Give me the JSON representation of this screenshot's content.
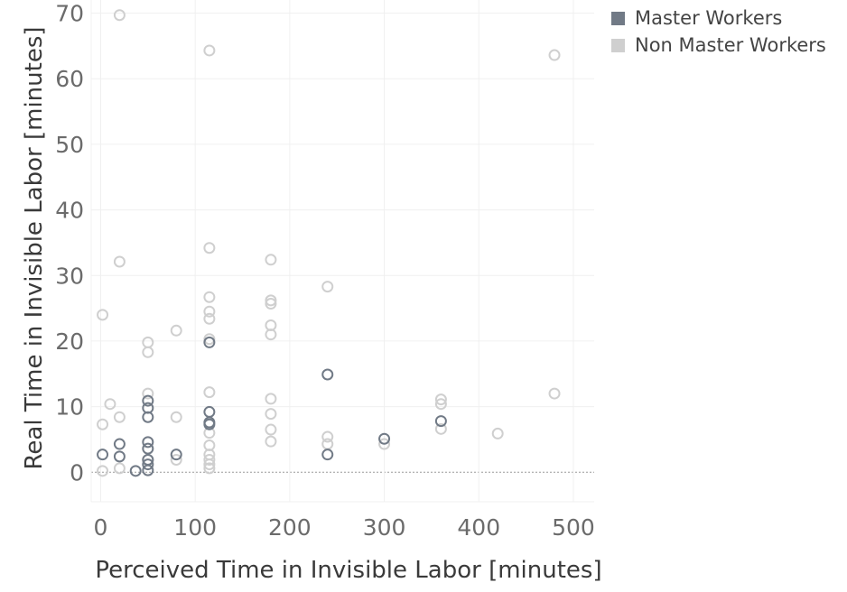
{
  "chart_data": {
    "type": "scatter",
    "xlabel": "Perceived Time in Invisible Labor [minutes]",
    "ylabel": "Real Time in Invisible Labor [minutes]",
    "xlim": [
      -10,
      522
    ],
    "ylim": [
      -4.5,
      72
    ],
    "x_ticks": [
      0,
      100,
      200,
      300,
      400,
      500
    ],
    "y_ticks": [
      0,
      10,
      20,
      30,
      40,
      50,
      60,
      70
    ],
    "grid": true,
    "legend_position": "top-right",
    "series": [
      {
        "name": "Master Workers",
        "color": "#717a86",
        "points": [
          [
            2,
            2.7
          ],
          [
            20,
            2.4
          ],
          [
            20,
            4.3
          ],
          [
            37,
            0.2
          ],
          [
            50,
            0.3
          ],
          [
            50,
            1.2
          ],
          [
            50,
            1.9
          ],
          [
            50,
            3.6
          ],
          [
            50,
            4.6
          ],
          [
            50,
            8.4
          ],
          [
            50,
            9.8
          ],
          [
            50,
            10.9
          ],
          [
            80,
            2.7
          ],
          [
            115,
            7.3
          ],
          [
            115,
            7.6
          ],
          [
            115,
            9.2
          ],
          [
            115,
            19.8
          ],
          [
            240,
            2.7
          ],
          [
            240,
            14.9
          ],
          [
            300,
            5.1
          ],
          [
            360,
            7.8
          ]
        ]
      },
      {
        "name": "Non Master Workers",
        "color": "#cfcfcf",
        "points": [
          [
            2,
            0.2
          ],
          [
            2,
            7.3
          ],
          [
            2,
            24.0
          ],
          [
            10,
            10.4
          ],
          [
            20,
            0.6
          ],
          [
            20,
            8.4
          ],
          [
            20,
            32.1
          ],
          [
            20,
            69.7
          ],
          [
            50,
            1.9
          ],
          [
            50,
            12.0
          ],
          [
            50,
            18.3
          ],
          [
            50,
            19.8
          ],
          [
            80,
            1.9
          ],
          [
            80,
            8.4
          ],
          [
            80,
            21.6
          ],
          [
            115,
            0.6
          ],
          [
            115,
            1.2
          ],
          [
            115,
            1.9
          ],
          [
            115,
            2.7
          ],
          [
            115,
            4.1
          ],
          [
            115,
            6.0
          ],
          [
            115,
            12.2
          ],
          [
            115,
            20.3
          ],
          [
            115,
            23.4
          ],
          [
            115,
            24.5
          ],
          [
            115,
            26.7
          ],
          [
            115,
            34.2
          ],
          [
            115,
            64.3
          ],
          [
            180,
            4.7
          ],
          [
            180,
            6.5
          ],
          [
            180,
            8.9
          ],
          [
            180,
            11.2
          ],
          [
            180,
            21.0
          ],
          [
            180,
            22.4
          ],
          [
            180,
            25.7
          ],
          [
            180,
            26.2
          ],
          [
            180,
            32.4
          ],
          [
            240,
            4.3
          ],
          [
            240,
            5.4
          ],
          [
            240,
            28.3
          ],
          [
            300,
            4.3
          ],
          [
            360,
            6.6
          ],
          [
            360,
            10.4
          ],
          [
            360,
            11.1
          ],
          [
            420,
            5.9
          ],
          [
            480,
            12.0
          ],
          [
            480,
            63.6
          ]
        ]
      }
    ]
  }
}
